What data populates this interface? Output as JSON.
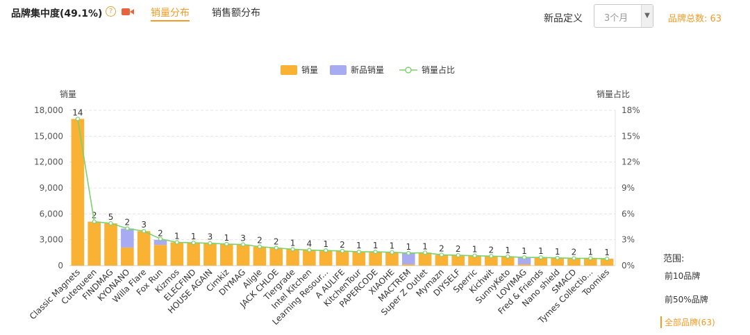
{
  "header": {
    "title": "品牌集中度(49.1%)",
    "help_icon_glyph": "?",
    "help_icon": "question-circle-icon",
    "video_icon": "video-camera-icon",
    "tabs": [
      "销量分布",
      "销售额分布"
    ],
    "new_product_def_label": "新品定义",
    "new_product_def_value": "3个月",
    "brand_total": "品牌总数: 63",
    "accent_color": "#f59a23"
  },
  "range": {
    "title": "范围:",
    "options": [
      "前10品牌",
      "前50%品牌",
      "全部品牌(63)"
    ],
    "selected": 2
  },
  "chart_data": {
    "type": "bar",
    "stacked": true,
    "categories": [
      "Classic Magnets",
      "Cutequeen",
      "FINDMAG",
      "KYONANO",
      "Willa Flare",
      "Fox Run",
      "Kizmos",
      "ELECFIND",
      "HOUSE AGAIN",
      "Cimkiz",
      "DIYMAG",
      "Aligle",
      "JACK CHLOE",
      "Tiergrade",
      "Intel Kitchen",
      "Learning Resour...",
      "A AULIFE",
      "KitchenTour",
      "PAPERCODE",
      "XIAOHE",
      "MACTREM",
      "Super Z Outlet",
      "Mymazn",
      "DIYSELF",
      "Sperric",
      "Kichwit",
      "SunnyKeto",
      "LOVIMAG",
      "Fred & Friends",
      "Nano shield",
      "SMACD",
      "Tymes Collectio...",
      "Toomies"
    ],
    "series": [
      {
        "name": "销量",
        "type": "bar",
        "color": "#f9b233",
        "values": [
          17000,
          5100,
          4900,
          2100,
          4000,
          2400,
          2700,
          2650,
          2600,
          2500,
          2450,
          2200,
          2050,
          1900,
          1800,
          1750,
          1700,
          1600,
          1600,
          1550,
          150,
          1500,
          1250,
          1200,
          1150,
          1100,
          1050,
          150,
          950,
          900,
          850,
          850,
          800
        ]
      },
      {
        "name": "新品销量",
        "type": "bar",
        "color": "#a8aaf2",
        "values": [
          0,
          0,
          0,
          2200,
          0,
          600,
          0,
          0,
          0,
          0,
          0,
          0,
          0,
          0,
          0,
          0,
          0,
          0,
          0,
          0,
          1300,
          0,
          0,
          0,
          0,
          0,
          0,
          800,
          0,
          0,
          0,
          0,
          0
        ]
      },
      {
        "name": "销量占比",
        "type": "line",
        "axis": "right",
        "color": "#7bd26c",
        "values": [
          17.0,
          5.1,
          4.9,
          4.3,
          4.0,
          3.1,
          2.7,
          2.65,
          2.6,
          2.5,
          2.45,
          2.2,
          2.05,
          1.9,
          1.8,
          1.75,
          1.7,
          1.6,
          1.6,
          1.55,
          1.45,
          1.5,
          1.25,
          1.2,
          1.15,
          1.1,
          1.05,
          0.95,
          0.95,
          0.9,
          0.85,
          0.85,
          0.8
        ]
      }
    ],
    "bar_labels": [
      "14",
      "2",
      "5",
      "2",
      "3",
      "2",
      "1",
      "1",
      "3",
      "1",
      "3",
      "2",
      "2",
      "1",
      "4",
      "1",
      "2",
      "1",
      "1",
      "1",
      "1",
      "1",
      "2",
      "2",
      "1",
      "2",
      "1",
      "1",
      "1",
      "1",
      "2",
      "1",
      "1"
    ],
    "ylabel": "销量",
    "y2label": "销量占比",
    "ylim": [
      0,
      18000
    ],
    "y2lim": [
      0,
      18
    ],
    "yticks": [
      "0",
      "3,000",
      "6,000",
      "9,000",
      "12,000",
      "15,000",
      "18,000"
    ],
    "y2ticks": [
      "0%",
      "3%",
      "6%",
      "9%",
      "12%",
      "15%",
      "18%"
    ],
    "legend_position": "top-center",
    "grid": "dashed horizontal"
  }
}
